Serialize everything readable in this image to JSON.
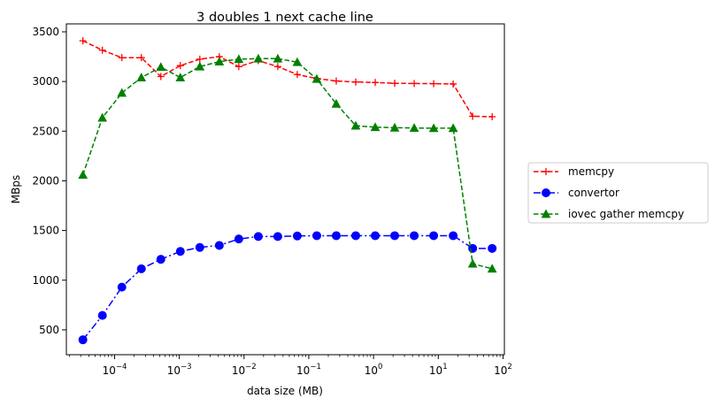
{
  "chart_data": {
    "type": "line",
    "title": "3 doubles 1 next cache line",
    "xlabel": "data size (MB)",
    "ylabel": "MBps",
    "xscale": "log",
    "xlim": [
      1.8e-05,
      105
    ],
    "ylim": [
      250,
      3580
    ],
    "x_ticks": [
      {
        "value": 0.0001,
        "base": "10",
        "exp": "−4"
      },
      {
        "value": 0.001,
        "base": "10",
        "exp": "−3"
      },
      {
        "value": 0.01,
        "base": "10",
        "exp": "−2"
      },
      {
        "value": 0.1,
        "base": "10",
        "exp": "−1"
      },
      {
        "value": 1,
        "base": "10",
        "exp": "0"
      },
      {
        "value": 10,
        "base": "10",
        "exp": "1"
      },
      {
        "value": 100,
        "base": "10",
        "exp": "2"
      }
    ],
    "y_ticks": [
      500,
      1000,
      1500,
      2000,
      2500,
      3000,
      3500
    ],
    "legend_position": "right",
    "x": [
      3.24e-05,
      6.48e-05,
      0.0001296,
      0.0002592,
      0.0005184,
      0.0010368,
      0.0020736,
      0.0041472,
      0.0082944,
      0.0165888,
      0.0331776,
      0.0663552,
      0.1327104,
      0.2654208,
      0.5308416,
      1.0616832,
      2.1233664,
      4.2467328,
      8.4934656,
      16.9869312,
      33.9738624,
      67.9477248
    ],
    "series": [
      {
        "name": "memcpy",
        "color": "#ff0000",
        "marker": "plus",
        "dash": "dashed",
        "values": [
          3410,
          3315,
          3240,
          3240,
          3050,
          3160,
          3225,
          3250,
          3150,
          3210,
          3150,
          3070,
          3030,
          3005,
          2995,
          2990,
          2982,
          2980,
          2978,
          2975,
          2650,
          2645
        ]
      },
      {
        "name": "convertor",
        "color": "#0000ff",
        "marker": "circle",
        "dash": "dashdot",
        "values": [
          400,
          645,
          930,
          1115,
          1210,
          1290,
          1330,
          1350,
          1415,
          1440,
          1440,
          1445,
          1448,
          1448,
          1448,
          1448,
          1448,
          1448,
          1448,
          1448,
          1320,
          1320
        ]
      },
      {
        "name": "iovec gather memcpy",
        "color": "#008000",
        "marker": "triangle",
        "dash": "dashed",
        "values": [
          2060,
          2635,
          2885,
          3040,
          3145,
          3040,
          3150,
          3200,
          3225,
          3230,
          3230,
          3195,
          3025,
          2775,
          2555,
          2540,
          2535,
          2532,
          2530,
          2530,
          1165,
          1115
        ]
      }
    ]
  }
}
